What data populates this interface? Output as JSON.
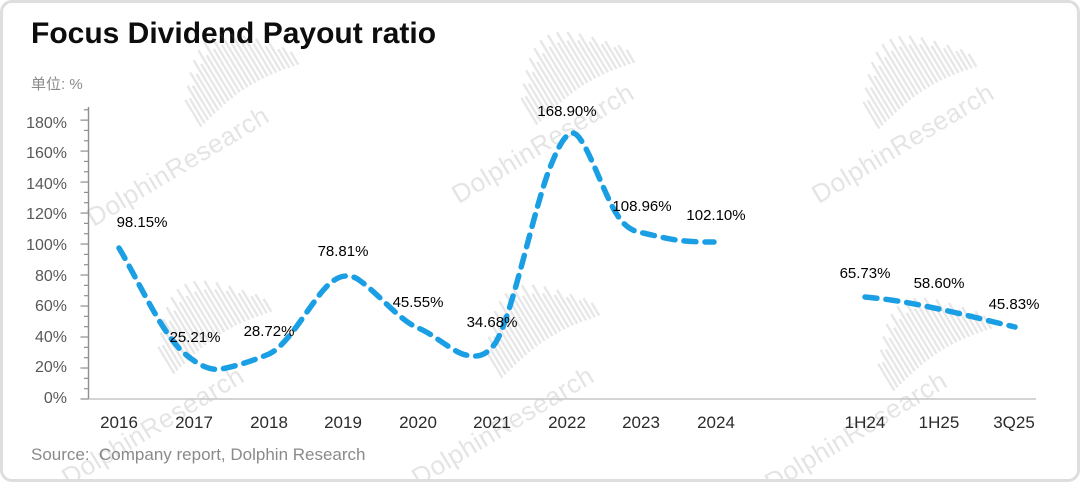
{
  "chart_data": {
    "type": "line",
    "title": "Focus Dividend Payout ratio",
    "unit_label": "单位: %",
    "source": "Source:  Company report, Dolphin Research",
    "watermark_text": "DolphinResearch",
    "line_color": "#1A9FE4",
    "line_style": "dashed",
    "x_axis": {
      "categories": [
        "2016",
        "2017",
        "2018",
        "2019",
        "2020",
        "2021",
        "2022",
        "2023",
        "2024",
        "1H24",
        "1H25",
        "3Q25"
      ],
      "gap_after": "2024"
    },
    "y_axis": {
      "min": 0,
      "max": 180,
      "tick_step": 20,
      "tick_labels": [
        "180%",
        "160%",
        "140%",
        "120%",
        "100%",
        "80%",
        "60%",
        "40%",
        "20%",
        "0%"
      ],
      "grid": false
    },
    "series": [
      {
        "name": "payout-ratio-annual",
        "categories": [
          "2016",
          "2017",
          "2018",
          "2019",
          "2020",
          "2021",
          "2022",
          "2023",
          "2024"
        ],
        "values": [
          98.15,
          25.21,
          28.72,
          78.81,
          45.55,
          34.68,
          168.9,
          108.96,
          102.1
        ],
        "labels": [
          "98.15%",
          "25.21%",
          "28.72%",
          "78.81%",
          "45.55%",
          "34.68%",
          "168.90%",
          "108.96%",
          "102.10%"
        ]
      },
      {
        "name": "payout-ratio-recent",
        "categories": [
          "1H24",
          "1H25",
          "3Q25"
        ],
        "values": [
          65.73,
          58.6,
          45.83
        ],
        "labels": [
          "65.73%",
          "58.60%",
          "45.83%"
        ]
      }
    ]
  }
}
